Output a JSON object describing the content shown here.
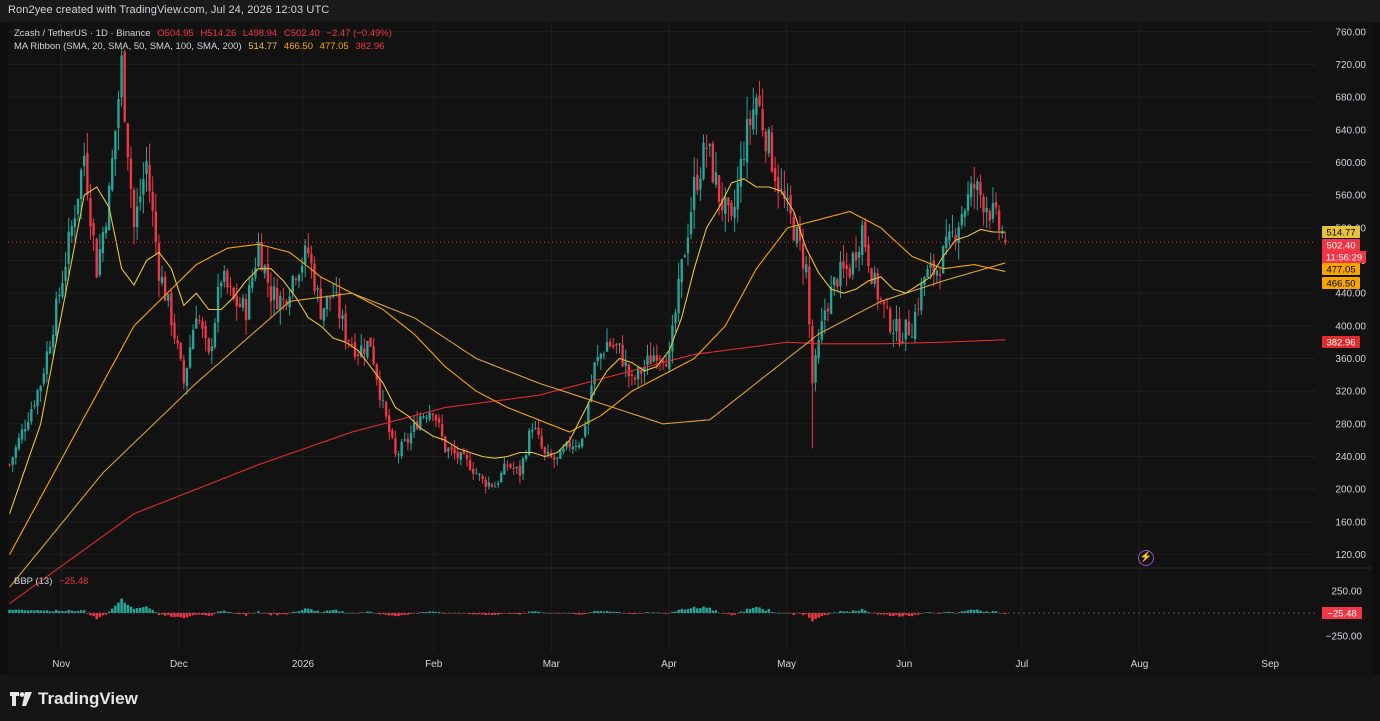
{
  "header": {
    "credit": "Ron2yee created with TradingView.com, Jul 24, 2026 12:03 UTC"
  },
  "legend": {
    "symbol": "Zcash / TetherUS · 1D · Binance",
    "open": "O504.95",
    "high": "H514.26",
    "low": "L498.94",
    "close": "C502.40",
    "change": "−2.47 (−0.49%)",
    "ma_ribbon": "MA Ribbon (SMA, 20, SMA, 50, SMA, 100, SMA, 200)",
    "ma_values": [
      "514.77",
      "466.50",
      "477.05",
      "382.96"
    ],
    "bbp_label": "BBP (13)",
    "bbp_value": "−25.48"
  },
  "price_tags": {
    "ma20": "514.77",
    "close": "502.40",
    "countdown": "11:56:29",
    "ma100": "477.05",
    "ma50": "466.50",
    "ma200": "382.96",
    "bbp": "−25.48"
  },
  "colors": {
    "up": "#26a69a",
    "down": "#f23645",
    "ma20": "#e8c33a",
    "ma50": "#f7a600",
    "ma100": "#d9a13a",
    "ma200": "#e02b2b",
    "grid": "#1f1f1f",
    "background": "#121212"
  },
  "icons": {
    "brand": "tradingview-logo-icon",
    "flash": "lightning-icon"
  },
  "brand": "TradingView",
  "chart_data": {
    "type": "candlestick",
    "title": "Zcash / TetherUS · 1D · Binance",
    "price_axis": {
      "ticks": [
        "760.00",
        "720.00",
        "680.00",
        "640.00",
        "600.00",
        "560.00",
        "520.00",
        "480.00",
        "440.00",
        "400.00",
        "360.00",
        "320.00",
        "280.00",
        "240.00",
        "200.00",
        "160.00",
        "120.00"
      ],
      "ylim": [
        106,
        772
      ]
    },
    "time_axis": {
      "ticks": [
        "Nov",
        "Dec",
        "2026",
        "Feb",
        "Mar",
        "Apr",
        "May",
        "Jun",
        "Jul",
        "Aug",
        "Sep"
      ]
    },
    "ohlc_last": {
      "open": 504.95,
      "high": 514.26,
      "low": 498.94,
      "close": 502.4
    },
    "series_keypoints": {
      "price_close": [
        [
          0,
          230
        ],
        [
          5,
          280
        ],
        [
          10,
          330
        ],
        [
          15,
          420
        ],
        [
          20,
          520
        ],
        [
          24,
          610
        ],
        [
          28,
          470
        ],
        [
          32,
          560
        ],
        [
          36,
          720
        ],
        [
          40,
          520
        ],
        [
          44,
          600
        ],
        [
          48,
          470
        ],
        [
          52,
          410
        ],
        [
          56,
          330
        ],
        [
          60,
          420
        ],
        [
          64,
          360
        ],
        [
          68,
          460
        ],
        [
          72,
          430
        ],
        [
          76,
          420
        ],
        [
          80,
          500
        ],
        [
          84,
          440
        ],
        [
          88,
          430
        ],
        [
          92,
          470
        ],
        [
          96,
          490
        ],
        [
          100,
          420
        ],
        [
          104,
          440
        ],
        [
          108,
          390
        ],
        [
          112,
          370
        ],
        [
          116,
          380
        ],
        [
          120,
          300
        ],
        [
          124,
          240
        ],
        [
          128,
          260
        ],
        [
          132,
          290
        ],
        [
          136,
          300
        ],
        [
          140,
          250
        ],
        [
          144,
          240
        ],
        [
          148,
          230
        ],
        [
          152,
          210
        ],
        [
          156,
          205
        ],
        [
          160,
          230
        ],
        [
          164,
          220
        ],
        [
          168,
          280
        ],
        [
          172,
          240
        ],
        [
          176,
          235
        ],
        [
          180,
          255
        ],
        [
          184,
          260
        ],
        [
          188,
          350
        ],
        [
          192,
          380
        ],
        [
          196,
          370
        ],
        [
          200,
          330
        ],
        [
          204,
          350
        ],
        [
          208,
          370
        ],
        [
          212,
          360
        ],
        [
          216,
          470
        ],
        [
          220,
          570
        ],
        [
          224,
          620
        ],
        [
          228,
          560
        ],
        [
          232,
          520
        ],
        [
          236,
          620
        ],
        [
          240,
          680
        ],
        [
          244,
          620
        ],
        [
          248,
          560
        ],
        [
          252,
          520
        ],
        [
          256,
          470
        ],
        [
          258,
          330
        ],
        [
          262,
          420
        ],
        [
          266,
          460
        ],
        [
          270,
          470
        ],
        [
          274,
          520
        ],
        [
          278,
          450
        ],
        [
          282,
          410
        ],
        [
          286,
          390
        ],
        [
          290,
          400
        ],
        [
          294,
          460
        ],
        [
          298,
          470
        ],
        [
          302,
          500
        ],
        [
          306,
          540
        ],
        [
          310,
          570
        ],
        [
          314,
          550
        ],
        [
          318,
          520
        ],
        [
          320,
          502.4
        ]
      ],
      "ma20": [
        [
          0,
          170
        ],
        [
          10,
          280
        ],
        [
          20,
          480
        ],
        [
          24,
          560
        ],
        [
          28,
          570
        ],
        [
          32,
          545
        ],
        [
          36,
          470
        ],
        [
          40,
          450
        ],
        [
          44,
          480
        ],
        [
          48,
          490
        ],
        [
          52,
          470
        ],
        [
          56,
          425
        ],
        [
          60,
          440
        ],
        [
          64,
          420
        ],
        [
          68,
          420
        ],
        [
          72,
          435
        ],
        [
          76,
          455
        ],
        [
          80,
          470
        ],
        [
          84,
          470
        ],
        [
          88,
          455
        ],
        [
          92,
          435
        ],
        [
          96,
          410
        ],
        [
          100,
          400
        ],
        [
          104,
          385
        ],
        [
          108,
          380
        ],
        [
          112,
          370
        ],
        [
          116,
          350
        ],
        [
          120,
          330
        ],
        [
          124,
          300
        ],
        [
          128,
          290
        ],
        [
          132,
          275
        ],
        [
          136,
          265
        ],
        [
          140,
          260
        ],
        [
          144,
          250
        ],
        [
          148,
          245
        ],
        [
          152,
          240
        ],
        [
          156,
          238
        ],
        [
          160,
          240
        ],
        [
          164,
          245
        ],
        [
          168,
          245
        ],
        [
          172,
          240
        ],
        [
          176,
          245
        ],
        [
          180,
          260
        ],
        [
          184,
          290
        ],
        [
          188,
          320
        ],
        [
          192,
          345
        ],
        [
          196,
          360
        ],
        [
          200,
          355
        ],
        [
          204,
          345
        ],
        [
          208,
          350
        ],
        [
          212,
          370
        ],
        [
          216,
          410
        ],
        [
          220,
          470
        ],
        [
          224,
          520
        ],
        [
          228,
          545
        ],
        [
          232,
          575
        ],
        [
          236,
          580
        ],
        [
          240,
          570
        ],
        [
          244,
          570
        ],
        [
          248,
          565
        ],
        [
          252,
          540
        ],
        [
          256,
          495
        ],
        [
          260,
          465
        ],
        [
          264,
          445
        ],
        [
          268,
          440
        ],
        [
          272,
          445
        ],
        [
          276,
          455
        ],
        [
          280,
          460
        ],
        [
          284,
          445
        ],
        [
          288,
          440
        ],
        [
          292,
          450
        ],
        [
          296,
          460
        ],
        [
          300,
          485
        ],
        [
          304,
          505
        ],
        [
          308,
          510
        ],
        [
          312,
          518
        ],
        [
          316,
          515
        ],
        [
          320,
          514.77
        ]
      ],
      "ma50": [
        [
          0,
          120
        ],
        [
          20,
          260
        ],
        [
          40,
          400
        ],
        [
          60,
          475
        ],
        [
          70,
          495
        ],
        [
          80,
          500
        ],
        [
          90,
          490
        ],
        [
          100,
          460
        ],
        [
          110,
          440
        ],
        [
          120,
          420
        ],
        [
          130,
          390
        ],
        [
          140,
          350
        ],
        [
          150,
          320
        ],
        [
          160,
          300
        ],
        [
          170,
          285
        ],
        [
          180,
          270
        ],
        [
          190,
          290
        ],
        [
          200,
          320
        ],
        [
          210,
          340
        ],
        [
          220,
          360
        ],
        [
          230,
          400
        ],
        [
          240,
          470
        ],
        [
          250,
          520
        ],
        [
          260,
          530
        ],
        [
          270,
          540
        ],
        [
          280,
          520
        ],
        [
          290,
          485
        ],
        [
          300,
          470
        ],
        [
          310,
          475
        ],
        [
          320,
          466.5
        ]
      ],
      "ma100": [
        [
          0,
          80
        ],
        [
          30,
          220
        ],
        [
          60,
          330
        ],
        [
          90,
          430
        ],
        [
          110,
          440
        ],
        [
          130,
          410
        ],
        [
          150,
          360
        ],
        [
          170,
          330
        ],
        [
          190,
          305
        ],
        [
          210,
          280
        ],
        [
          225,
          285
        ],
        [
          240,
          330
        ],
        [
          260,
          390
        ],
        [
          280,
          430
        ],
        [
          300,
          455
        ],
        [
          320,
          477.05
        ]
      ],
      "ma200": [
        [
          0,
          60
        ],
        [
          40,
          170
        ],
        [
          80,
          230
        ],
        [
          110,
          270
        ],
        [
          140,
          300
        ],
        [
          170,
          315
        ],
        [
          200,
          345
        ],
        [
          220,
          365
        ],
        [
          240,
          375
        ],
        [
          250,
          380
        ],
        [
          260,
          378
        ],
        [
          280,
          378
        ],
        [
          300,
          380
        ],
        [
          320,
          382.96
        ]
      ]
    },
    "indicator": {
      "name": "BBP (13)",
      "last": -25.48,
      "ticks": [
        "250.00",
        "−250.00"
      ]
    }
  }
}
